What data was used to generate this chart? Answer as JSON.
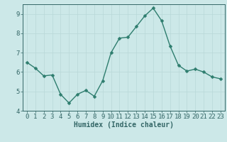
{
  "x": [
    0,
    1,
    2,
    3,
    4,
    5,
    6,
    7,
    8,
    9,
    10,
    11,
    12,
    13,
    14,
    15,
    16,
    17,
    18,
    19,
    20,
    21,
    22,
    23
  ],
  "y": [
    6.5,
    6.2,
    5.8,
    5.85,
    4.85,
    4.4,
    4.85,
    5.05,
    4.75,
    5.55,
    7.0,
    7.75,
    7.8,
    8.35,
    8.9,
    9.3,
    8.65,
    7.35,
    6.35,
    6.05,
    6.15,
    6.0,
    5.75,
    5.65
  ],
  "line_color": "#2e7d6e",
  "marker_color": "#2e7d6e",
  "bg_color": "#cce8e8",
  "grid_color": "#b8d8d8",
  "axis_color": "#336666",
  "xlabel": "Humidex (Indice chaleur)",
  "xlim": [
    -0.5,
    23.5
  ],
  "ylim": [
    4.0,
    9.5
  ],
  "yticks": [
    4,
    5,
    6,
    7,
    8,
    9
  ],
  "xticks": [
    0,
    1,
    2,
    3,
    4,
    5,
    6,
    7,
    8,
    9,
    10,
    11,
    12,
    13,
    14,
    15,
    16,
    17,
    18,
    19,
    20,
    21,
    22,
    23
  ],
  "xlabel_fontsize": 7,
  "tick_fontsize": 6.5,
  "line_width": 1.0,
  "marker_size": 2.5
}
